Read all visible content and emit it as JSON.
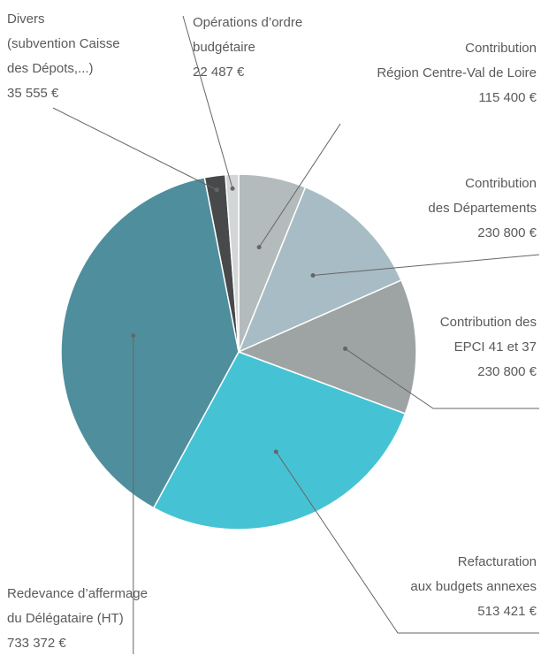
{
  "chart_data": {
    "type": "pie",
    "categories": [
      [
        "Contribution",
        "Région Centre-Val de Loire"
      ],
      [
        "Contribution",
        "des Départements"
      ],
      [
        "Contribution des",
        "EPCI 41 et 37"
      ],
      [
        "Refacturation",
        "aux budgets annexes"
      ],
      [
        "Redevance d’affermage",
        "du Délégataire (HT)"
      ],
      [
        "Divers",
        "(subvention Caisse",
        "des Dépots,...)"
      ],
      [
        "Opérations d’ordre",
        "budgétaire"
      ]
    ],
    "values": [
      115400,
      230800,
      230800,
      513421,
      733372,
      35555,
      22487
    ],
    "value_labels": [
      "115 400 €",
      "230 800 €",
      "230 800 €",
      "513 421 €",
      "733 372 €",
      "35 555 €",
      "22 487 €"
    ],
    "colors": [
      "#b4bbbc",
      "#a8bcc5",
      "#9ea4a4",
      "#45c3d4",
      "#4f8e9d",
      "#47494b",
      "#d3d6d7"
    ]
  }
}
